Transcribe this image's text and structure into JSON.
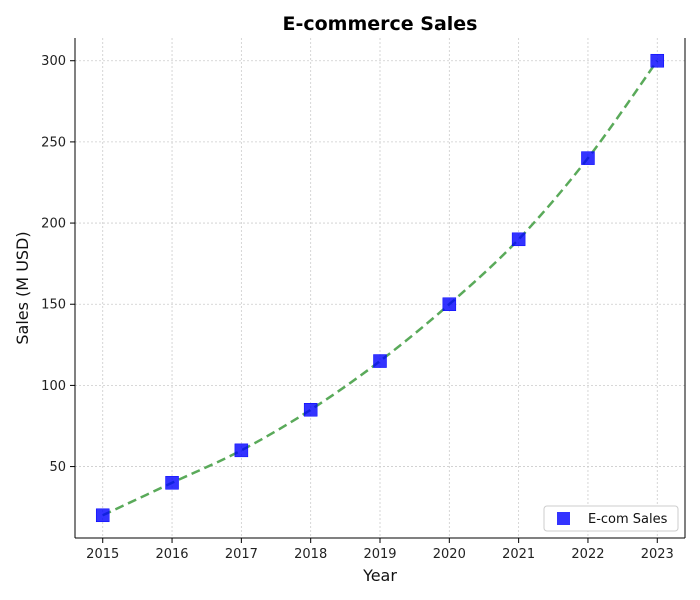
{
  "chart_data": {
    "type": "scatter",
    "title": "E-commerce Sales",
    "xlabel": "Year",
    "ylabel": "Sales (M USD)",
    "x": [
      2015,
      2016,
      2017,
      2018,
      2019,
      2020,
      2021,
      2022,
      2023
    ],
    "series": [
      {
        "name": "E-com Sales",
        "values": [
          20,
          40,
          60,
          85,
          115,
          150,
          190,
          240,
          300
        ],
        "marker": "square",
        "color": "#0000ff",
        "trend_line": {
          "style": "dashed",
          "color": "#5aaa5a"
        }
      }
    ],
    "xlim": [
      2014.6,
      2023.4
    ],
    "ylim": [
      6,
      314
    ],
    "xticks": [
      2015,
      2016,
      2017,
      2018,
      2019,
      2020,
      2021,
      2022,
      2023
    ],
    "yticks": [
      50,
      100,
      150,
      200,
      250,
      300
    ],
    "grid": true,
    "legend_position": "lower-right"
  }
}
